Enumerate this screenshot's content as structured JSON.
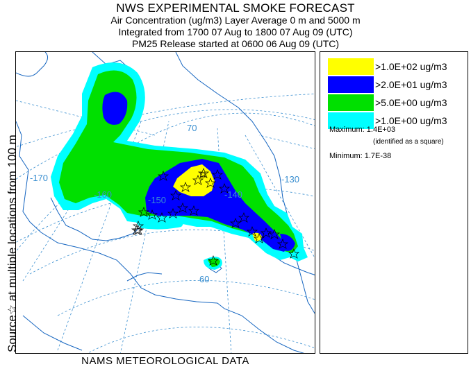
{
  "header": {
    "title": "NWS EXPERIMENTAL SMOKE FORECAST",
    "line2": "Air Concentration (ug/m3) Layer Average    0 m and  5000 m",
    "line3": "Integrated from 1700 07 Aug to 1800 07 Aug 09 (UTC)",
    "line4": "PM25 Release started at 0600 06 Aug 09 (UTC)"
  },
  "side_label": "Source☆ at multiple locations   from   100 m",
  "bottom_label": "NAMS METEOROLOGICAL DATA",
  "map": {
    "graticule_labels": {
      "lat70": "70",
      "lat60": "60",
      "lon_170": "-170",
      "lon_160": "-160",
      "lon_150": "-150",
      "lon_140": "-140",
      "lon_130": "-130"
    },
    "colors": {
      "land_outline": "#1565c0",
      "graticule": "#3a8fd0",
      "level4": "#ffff00",
      "level3": "#0000ff",
      "level2": "#00e000",
      "level1": "#00ffff"
    }
  },
  "legend": {
    "levels": [
      {
        "label": ">1.0E+02 ug/m3",
        "color": "#ffff00"
      },
      {
        "label": ">2.0E+01 ug/m3",
        "color": "#0000ff"
      },
      {
        "label": ">5.0E+00 ug/m3",
        "color": "#00e000"
      },
      {
        "label": ">1.0E+00 ug/m3",
        "color": "#00ffff"
      }
    ],
    "maximum_label": "Maximum: 1.4E+03",
    "maximum_note": "(identified as a square)",
    "minimum_label": "Minimum: 1.7E-38"
  }
}
